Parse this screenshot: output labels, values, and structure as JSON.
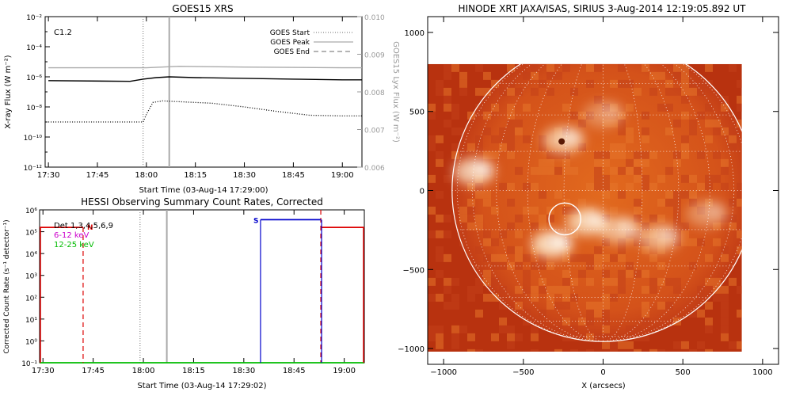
{
  "chart_data": [
    {
      "type": "line",
      "title": "GOES15 XRS",
      "xlabel": "Start Time (03-Aug-14 17:29:00)",
      "ylabel": "X-ray Flux (W m⁻²)",
      "y2label": "GOES15 Lyx Flux (W m⁻²)",
      "x_ticks": [
        "17:30",
        "17:45",
        "18:00",
        "18:15",
        "18:30",
        "18:45",
        "19:00"
      ],
      "xlim_minutes": [
        0,
        97
      ],
      "y_ticks": [
        "10⁻²",
        "10⁻⁴",
        "10⁻⁶",
        "10⁻⁸",
        "10⁻¹⁰",
        "10⁻¹²"
      ],
      "ylim_log10": [
        -12,
        -2
      ],
      "y2_ticks": [
        "0.010",
        "0.009",
        "0.008",
        "0.007",
        "0.006"
      ],
      "y2lim": [
        0.006,
        0.01
      ],
      "annotation": "C1.2",
      "legend": [
        {
          "label": "GOES Start",
          "style": "dotted"
        },
        {
          "label": "GOES Peak",
          "style": "solid"
        },
        {
          "label": "GOES End",
          "style": "dashed"
        }
      ],
      "legend_position": "top-right",
      "events": {
        "start": "17:59",
        "peak": "18:07",
        "end": "out-of-range"
      },
      "series": [
        {
          "name": "upper",
          "color": "#000000",
          "style": "solid",
          "x": [
            "17:30",
            "17:55",
            "17:59",
            "18:03",
            "18:07",
            "18:15",
            "18:30",
            "18:45",
            "19:00",
            "19:06"
          ],
          "log10_flux": [
            -6.25,
            -6.3,
            -6.15,
            -6.05,
            -6.0,
            -6.05,
            -6.1,
            -6.15,
            -6.2,
            -6.2
          ]
        },
        {
          "name": "lower",
          "color": "#000000",
          "style": "dotted",
          "x": [
            "17:30",
            "17:59",
            "18:00",
            "18:02",
            "18:05",
            "18:10",
            "18:20",
            "18:30",
            "18:40",
            "18:50",
            "19:00",
            "19:06"
          ],
          "log10_flux": [
            -9.0,
            -9.0,
            -8.5,
            -7.7,
            -7.6,
            -7.65,
            -7.75,
            -8.0,
            -8.3,
            -8.55,
            -8.6,
            -8.6
          ]
        },
        {
          "name": "lyx",
          "color": "#aaaaaa",
          "style": "solid",
          "x": [
            "17:30",
            "18:00",
            "18:10",
            "18:30",
            "19:00",
            "19:06"
          ],
          "lyx_flux": [
            0.00864,
            0.00864,
            0.00868,
            0.00866,
            0.00864,
            0.00864
          ]
        }
      ]
    },
    {
      "type": "line",
      "title": "HESSI Observing Summary Count Rates, Corrected",
      "xlabel": "Start Time (03-Aug-14 17:29:02)",
      "ylabel": "Corrected Count Rate (s⁻¹ detector⁻¹)",
      "x_ticks": [
        "17:30",
        "17:45",
        "18:00",
        "18:15",
        "18:30",
        "18:45",
        "19:00"
      ],
      "xlim_minutes": [
        0,
        97
      ],
      "y_ticks": [
        "10⁶",
        "10⁵",
        "10⁴",
        "10³",
        "10²",
        "10¹",
        "10⁰",
        "10⁻¹"
      ],
      "ylim_log10": [
        -1,
        6
      ],
      "legend": [
        {
          "label": "Det 1,3,4,5,6,9",
          "color": "#000000"
        },
        {
          "label": "6-12 keV",
          "color": "#cc00cc"
        },
        {
          "label": "12-25 keV",
          "color": "#00bb00"
        }
      ],
      "legend_position": "top-left",
      "markers": [
        {
          "label": "N",
          "x": "17:42",
          "color": "#dd0000",
          "style": "dashed"
        },
        {
          "label": "S",
          "x": "18:35",
          "color": "#0000cc",
          "style": "solid"
        }
      ],
      "vlines": [
        {
          "x": "17:59",
          "style": "dotted",
          "color": "#888888"
        },
        {
          "x": "18:07",
          "style": "solid",
          "color": "#aaaaaa"
        },
        {
          "x": "18:53",
          "style": "dashed",
          "color": "#dd0000"
        }
      ],
      "series": [
        {
          "name": "6-12 keV",
          "color": "#dd0000",
          "x": [
            "17:29",
            "17:42"
          ],
          "log10_rate": [
            5.2,
            5.2
          ]
        },
        {
          "name": "6-12 keV b",
          "color": "#dd0000",
          "x": [
            "18:53",
            "19:06"
          ],
          "log10_rate": [
            5.2,
            5.2
          ]
        },
        {
          "name": "blue",
          "color": "#0000cc",
          "x": [
            "18:35",
            "18:53"
          ],
          "log10_rate": [
            5.55,
            5.55
          ]
        },
        {
          "name": "12-25 keV",
          "color": "#00bb00",
          "x": [
            "17:29",
            "19:06"
          ],
          "log10_rate": [
            -1,
            -1
          ]
        }
      ]
    },
    {
      "type": "heatmap",
      "title": "HINODE XRT JAXA/ISAS, SIRIUS   3-Aug-2014 12:19:05.892 UT",
      "xlabel": "X (arcsecs)",
      "ylabel": "",
      "x_ticks": [
        "−1000",
        "−500",
        "0",
        "500",
        "1000"
      ],
      "y_ticks": [
        "1000",
        "500",
        "0",
        "−500",
        "−1000"
      ],
      "xlim": [
        -1100,
        1100
      ],
      "ylim": [
        -1100,
        1100
      ],
      "data_extent": {
        "x": [
          -1100,
          870
        ],
        "y": [
          -1020,
          800
        ]
      },
      "solar_radius": 947,
      "highlight_circle": {
        "x": -240,
        "y": -180,
        "r": 100
      },
      "bright_regions": [
        {
          "x": -810,
          "y": 120,
          "level": 0.7
        },
        {
          "x": -320,
          "y": -340,
          "level": 0.8
        },
        {
          "x": -100,
          "y": -200,
          "level": 0.7
        },
        {
          "x": 100,
          "y": -250,
          "level": 0.55
        },
        {
          "x": 350,
          "y": -300,
          "level": 0.5
        },
        {
          "x": 650,
          "y": -150,
          "level": 0.35
        },
        {
          "x": -250,
          "y": 320,
          "level": 0.6
        },
        {
          "x": 0,
          "y": 480,
          "level": 0.3
        }
      ]
    }
  ]
}
